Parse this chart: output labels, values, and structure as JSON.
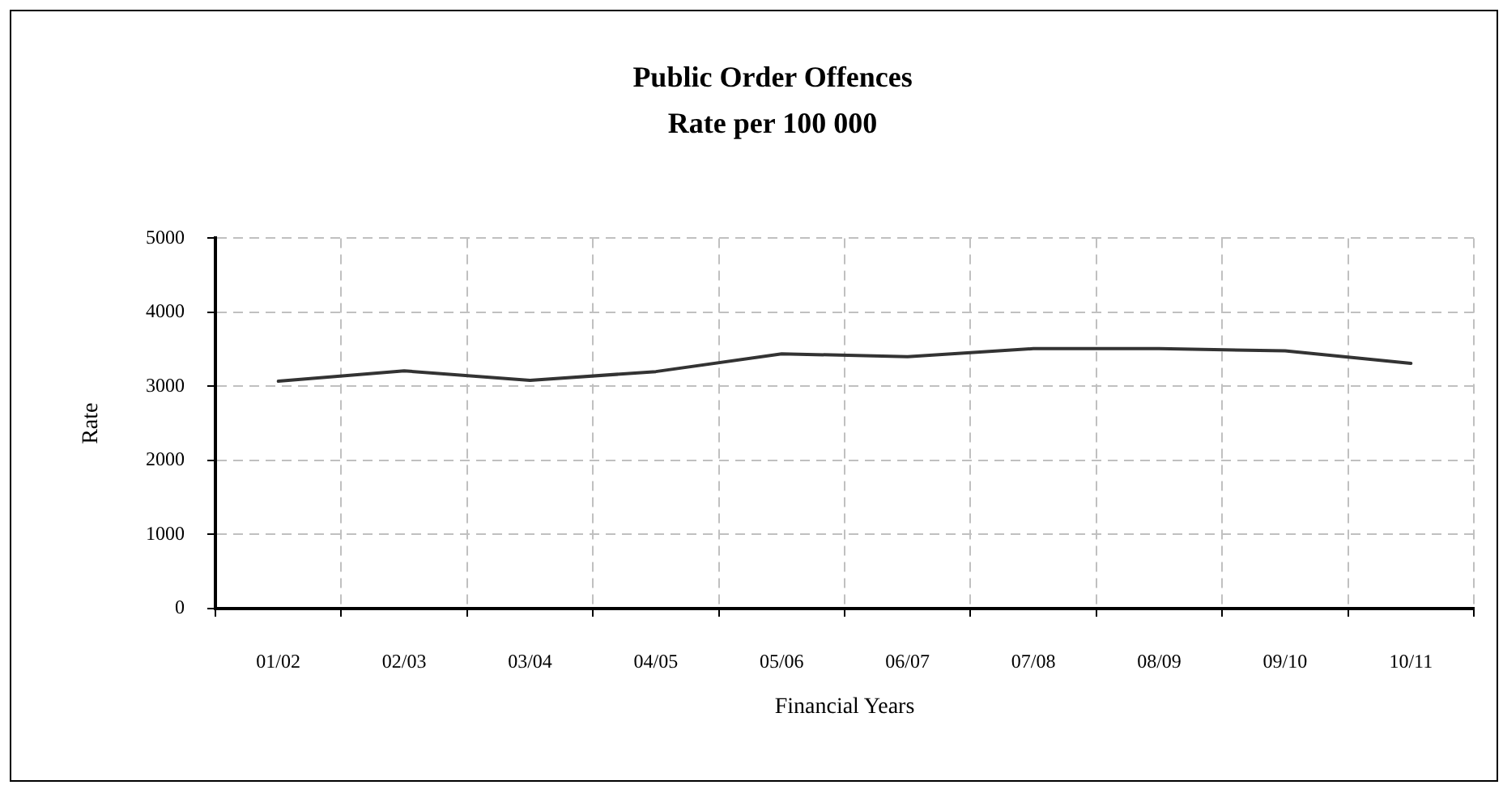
{
  "chart_data": {
    "type": "line",
    "title": "Public Order Offences",
    "subtitle": "Rate per 100 000",
    "xlabel": "Financial Years",
    "ylabel": "Rate",
    "categories": [
      "01/02",
      "02/03",
      "03/04",
      "04/05",
      "05/06",
      "06/07",
      "07/08",
      "08/09",
      "09/10",
      "10/11"
    ],
    "series": [
      {
        "color": "#333333",
        "values": [
          3070,
          3210,
          3080,
          3200,
          3440,
          3400,
          3510,
          3510,
          3480,
          3310
        ]
      }
    ],
    "ylim": [
      0,
      5000
    ],
    "yticks": [
      0,
      1000,
      2000,
      3000,
      4000,
      5000
    ],
    "grid": true,
    "legend": false,
    "marker": "none",
    "line_style": "solid"
  }
}
